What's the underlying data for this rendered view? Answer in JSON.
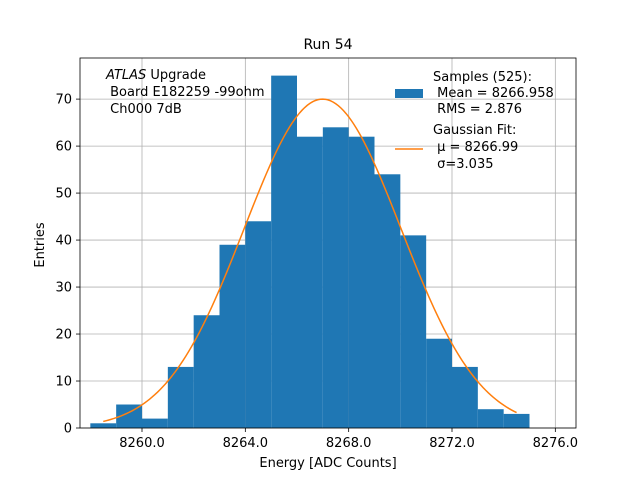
{
  "chart_data": {
    "type": "bar",
    "title": "Run 54",
    "xlabel": "Energy [ADC Counts]",
    "ylabel": "Entries",
    "xlim": [
      8257.6,
      8276.8
    ],
    "ylim": [
      0,
      78.75
    ],
    "grid": true,
    "xticks": [
      8260,
      8264,
      8268,
      8272,
      8276
    ],
    "xtick_labels": [
      "8260.0",
      "8264.0",
      "8268.0",
      "8272.0",
      "8276.0"
    ],
    "yticks": [
      0,
      10,
      20,
      30,
      40,
      50,
      60,
      70
    ],
    "ytick_labels": [
      "0",
      "10",
      "20",
      "30",
      "40",
      "50",
      "60",
      "70"
    ],
    "bin_edges": [
      8258.0,
      8259.0,
      8260.0,
      8261.0,
      8262.0,
      8263.0,
      8264.0,
      8265.0,
      8266.0,
      8267.0,
      8268.0,
      8269.0,
      8270.0,
      8271.0,
      8272.0,
      8273.0,
      8274.0,
      8275.0
    ],
    "counts": [
      1,
      5,
      2,
      13,
      24,
      39,
      44,
      75,
      62,
      64,
      62,
      54,
      41,
      19,
      13,
      4,
      3
    ],
    "fit": {
      "type": "gaussian",
      "amplitude": 70,
      "mu": 8266.99,
      "sigma": 3.035,
      "x_range": [
        8258.5,
        8274.5
      ]
    },
    "annotation": {
      "italic": "ATLAS",
      "rest": " Upgrade",
      "line2": " Board E182259 -99ohm",
      "line3": " Ch000 7dB"
    },
    "legend": {
      "placement": "upper right",
      "entries": [
        {
          "lines": [
            "Samples (525):",
            " Mean = 8266.958",
            " RMS = 2.876"
          ]
        },
        {
          "lines": [
            "Gaussian Fit:",
            " μ = 8266.99",
            " σ=3.035"
          ]
        }
      ]
    },
    "colors": {
      "bars": "#1f77b4",
      "fit": "#ff7f0e",
      "grid": "#b0b0b0"
    }
  }
}
